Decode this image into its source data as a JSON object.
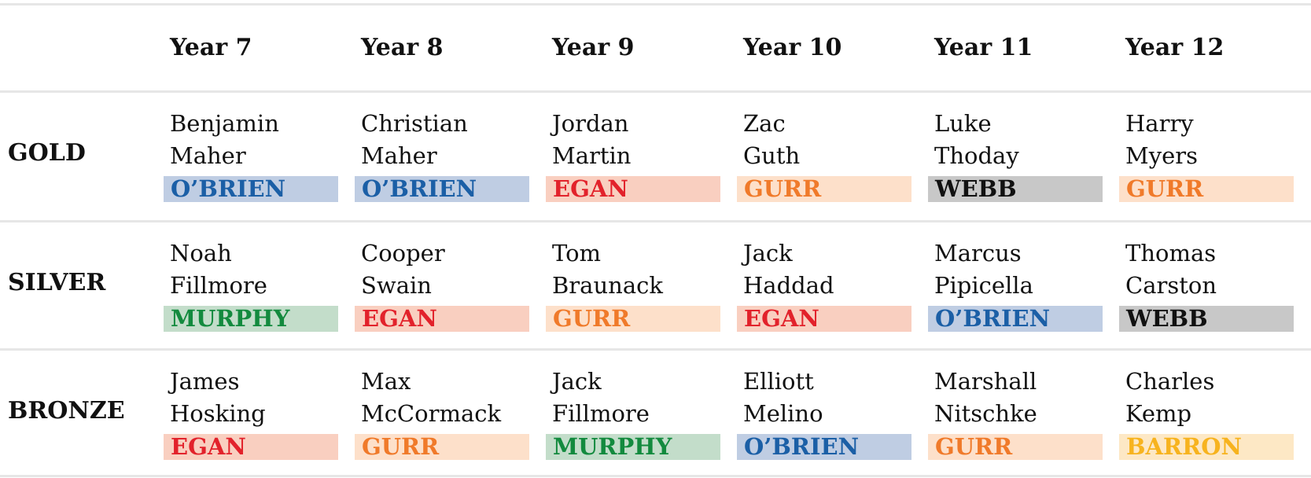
{
  "table": {
    "columns": [
      "Year 7",
      "Year 8",
      "Year 9",
      "Year 10",
      "Year 11",
      "Year 12"
    ],
    "rows": [
      {
        "label": "GOLD",
        "cells": [
          {
            "first": "Benjamin",
            "last": "Maher",
            "house": "O’BRIEN",
            "color": "#1b5fa6",
            "background": "#bfcde3"
          },
          {
            "first": "Christian",
            "last": "Maher",
            "house": "O’BRIEN",
            "color": "#1b5fa6",
            "background": "#bfcde3"
          },
          {
            "first": "Jordan",
            "last": "Martin",
            "house": "EGAN",
            "color": "#e2222b",
            "background": "#f9cfc0"
          },
          {
            "first": "Zac",
            "last": "Guth",
            "house": "GURR",
            "color": "#f07a2a",
            "background": "#fde0ca"
          },
          {
            "first": "Luke",
            "last": "Thoday",
            "house": "WEBB",
            "color": "#111111",
            "background": "#c8c8c8"
          },
          {
            "first": "Harry",
            "last": "Myers",
            "house": "GURR",
            "color": "#f07a2a",
            "background": "#fde0ca"
          }
        ]
      },
      {
        "label": "SILVER",
        "cells": [
          {
            "first": "Noah",
            "last": "Fillmore",
            "house": "MURPHY",
            "color": "#138a3e",
            "background": "#c3ddca"
          },
          {
            "first": "Cooper",
            "last": "Swain",
            "house": "EGAN",
            "color": "#e2222b",
            "background": "#f9cfc0"
          },
          {
            "first": "Tom",
            "last": "Braunack",
            "house": "GURR",
            "color": "#f07a2a",
            "background": "#fde0ca"
          },
          {
            "first": "Jack",
            "last": "Haddad",
            "house": "EGAN",
            "color": "#e2222b",
            "background": "#f9cfc0"
          },
          {
            "first": "Marcus",
            "last": "Pipicella",
            "house": "O’BRIEN",
            "color": "#1b5fa6",
            "background": "#bfcde3"
          },
          {
            "first": "Thomas",
            "last": "Carston",
            "house": "WEBB",
            "color": "#111111",
            "background": "#c8c8c8"
          }
        ]
      },
      {
        "label": "BRONZE",
        "cells": [
          {
            "first": "James",
            "last": "Hosking",
            "house": "EGAN",
            "color": "#e2222b",
            "background": "#f9cfc0"
          },
          {
            "first": "Max",
            "last": "McCormack",
            "house": "GURR",
            "color": "#f07a2a",
            "background": "#fde0ca"
          },
          {
            "first": "Jack",
            "last": "Fillmore",
            "house": "MURPHY",
            "color": "#138a3e",
            "background": "#c3ddca"
          },
          {
            "first": "Elliott",
            "last": "Melino",
            "house": "O’BRIEN",
            "color": "#1b5fa6",
            "background": "#bfcde3"
          },
          {
            "first": "Marshall",
            "last": "Nitschke",
            "house": "GURR",
            "color": "#f07a2a",
            "background": "#fde0ca"
          },
          {
            "first": "Charles",
            "last": "Kemp",
            "house": "BARRON",
            "color": "#f7b31e",
            "background": "#fde8c5"
          }
        ]
      }
    ]
  }
}
